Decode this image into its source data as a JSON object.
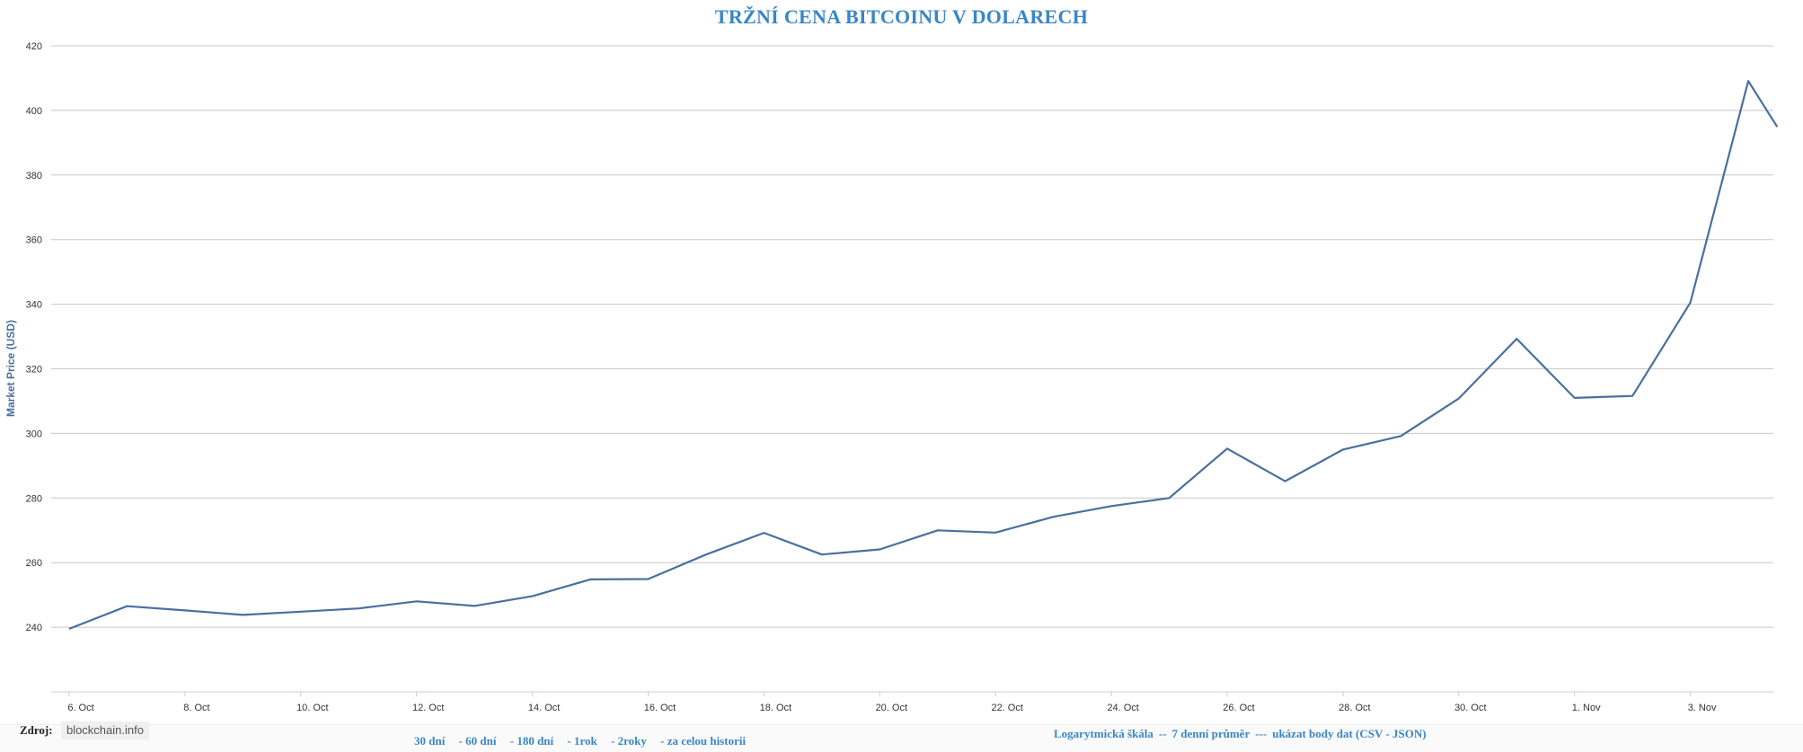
{
  "chart_data": {
    "type": "line",
    "title": "TRŽNÍ CENA  BITCOINU V DOLARECH",
    "ylabel": "Market Price (USD)",
    "xlabel": "",
    "ylim": [
      220,
      420
    ],
    "yticks": [
      240,
      260,
      280,
      300,
      320,
      340,
      360,
      380,
      400,
      420
    ],
    "xticks": [
      "6. Oct",
      "8. Oct",
      "10. Oct",
      "12. Oct",
      "14. Oct",
      "16. Oct",
      "18. Oct",
      "20. Oct",
      "22. Oct",
      "24. Oct",
      "26. Oct",
      "28. Oct",
      "30. Oct",
      "1. Nov",
      "3. Nov"
    ],
    "grid": true,
    "line_color": "#4a6f9e",
    "series": [
      {
        "points": [
          {
            "x": "2014-10-06",
            "y": 239.5
          },
          {
            "x": "2014-10-07",
            "y": 246.5
          },
          {
            "x": "2014-10-08",
            "y": 245.2
          },
          {
            "x": "2014-10-09",
            "y": 243.8
          },
          {
            "x": "2014-10-10",
            "y": 244.8
          },
          {
            "x": "2014-10-11",
            "y": 245.8
          },
          {
            "x": "2014-10-12",
            "y": 248.0
          },
          {
            "x": "2014-10-13",
            "y": 246.6
          },
          {
            "x": "2014-10-14",
            "y": 249.6
          },
          {
            "x": "2014-10-15",
            "y": 254.8
          },
          {
            "x": "2014-10-16",
            "y": 254.9
          },
          {
            "x": "2014-10-17",
            "y": 262.5
          },
          {
            "x": "2014-10-18",
            "y": 269.2
          },
          {
            "x": "2014-10-19",
            "y": 262.5
          },
          {
            "x": "2014-10-20",
            "y": 264.1
          },
          {
            "x": "2014-10-21",
            "y": 270.0
          },
          {
            "x": "2014-10-22",
            "y": 269.3
          },
          {
            "x": "2014-10-23",
            "y": 274.2
          },
          {
            "x": "2014-10-24",
            "y": 277.5
          },
          {
            "x": "2014-10-25",
            "y": 280.0
          },
          {
            "x": "2014-10-26",
            "y": 295.3
          },
          {
            "x": "2014-10-27",
            "y": 285.2
          },
          {
            "x": "2014-10-28",
            "y": 295.0
          },
          {
            "x": "2014-10-29",
            "y": 299.2
          },
          {
            "x": "2014-10-30",
            "y": 310.8
          },
          {
            "x": "2014-10-31",
            "y": 329.3
          },
          {
            "x": "2014-11-01",
            "y": 311.0
          },
          {
            "x": "2014-11-02",
            "y": 311.6
          },
          {
            "x": "2014-11-03",
            "y": 340.5
          },
          {
            "x": "2014-11-04",
            "y": 409.1
          },
          {
            "x": "2014-11-04T12:00",
            "y": 394.9
          }
        ]
      }
    ]
  },
  "footer": {
    "source_label": "Zdroj:",
    "source_value": "blockchain.info",
    "range_links": [
      "30 dní",
      "- 60 dní",
      "- 180 dní",
      "- 1rok",
      "- 2roky",
      "- za celou historii"
    ],
    "options": {
      "log_scale": "Logarytmická škála",
      "avg_sep": "--",
      "avg": "7 denní průměr",
      "points_sep": "---",
      "points": "ukázat body dat (CSV - JSON)"
    }
  }
}
